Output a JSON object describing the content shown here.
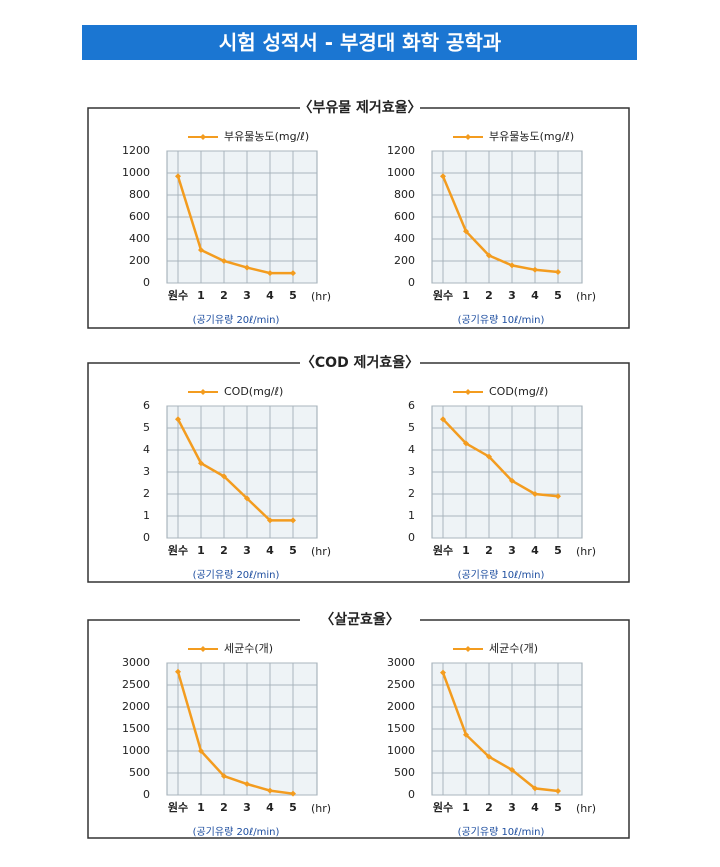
{
  "header": {
    "title": "시험 성적서 - 부경대 화학 공학과"
  },
  "sections": [
    {
      "title": "〈부유물 제거효율〉"
    },
    {
      "title": "〈COD 제거효율〉"
    },
    {
      "title": "〈살균효율〉"
    }
  ],
  "chart_data": [
    {
      "type": "line",
      "categories": [
        "원수",
        "1",
        "2",
        "3",
        "4",
        "5"
      ],
      "x_label": "(hr)",
      "caption": "(공기유량 20ℓ/min)",
      "series": [
        {
          "name": "부유물농도(mg/ℓ)",
          "color": "#f39c1f",
          "values": [
            970,
            300,
            200,
            140,
            90,
            90
          ]
        }
      ],
      "ylim": [
        0,
        1200
      ],
      "yticks": [
        0,
        200,
        400,
        600,
        800,
        1000,
        1200
      ],
      "grid": true
    },
    {
      "type": "line",
      "categories": [
        "원수",
        "1",
        "2",
        "3",
        "4",
        "5"
      ],
      "x_label": "(hr)",
      "caption": "(공기유량 10ℓ/min)",
      "series": [
        {
          "name": "부유물농도(mg/ℓ)",
          "color": "#f39c1f",
          "values": [
            970,
            470,
            250,
            160,
            120,
            100
          ]
        }
      ],
      "ylim": [
        0,
        1200
      ],
      "yticks": [
        0,
        200,
        400,
        600,
        800,
        1000,
        1200
      ],
      "grid": true
    },
    {
      "type": "line",
      "categories": [
        "원수",
        "1",
        "2",
        "3",
        "4",
        "5"
      ],
      "x_label": "(hr)",
      "caption": "(공기유량 20ℓ/min)",
      "series": [
        {
          "name": "COD(mg/ℓ)",
          "color": "#f39c1f",
          "values": [
            5.4,
            3.4,
            2.8,
            1.8,
            0.8,
            0.8
          ]
        }
      ],
      "ylim": [
        0,
        6
      ],
      "yticks": [
        0,
        1,
        2,
        3,
        4,
        5,
        6
      ],
      "grid": true
    },
    {
      "type": "line",
      "categories": [
        "원수",
        "1",
        "2",
        "3",
        "4",
        "5"
      ],
      "x_label": "(hr)",
      "caption": "(공기유량 10ℓ/min)",
      "series": [
        {
          "name": "COD(mg/ℓ)",
          "color": "#f39c1f",
          "values": [
            5.4,
            4.3,
            3.7,
            2.6,
            2.0,
            1.9
          ]
        }
      ],
      "ylim": [
        0,
        6
      ],
      "yticks": [
        0,
        1,
        2,
        3,
        4,
        5,
        6
      ],
      "grid": true
    },
    {
      "type": "line",
      "categories": [
        "원수",
        "1",
        "2",
        "3",
        "4",
        "5"
      ],
      "x_label": "(hr)",
      "caption": "(공기유량 20ℓ/min)",
      "series": [
        {
          "name": "세균수(개)",
          "color": "#f39c1f",
          "values": [
            2800,
            1000,
            430,
            250,
            100,
            30
          ]
        }
      ],
      "ylim": [
        0,
        3000
      ],
      "yticks": [
        0,
        500,
        1000,
        1500,
        2000,
        2500,
        3000
      ],
      "grid": true
    },
    {
      "type": "line",
      "categories": [
        "원수",
        "1",
        "2",
        "3",
        "4",
        "5"
      ],
      "x_label": "(hr)",
      "caption": "(공기유량 10ℓ/min)",
      "series": [
        {
          "name": "세균수(개)",
          "color": "#f39c1f",
          "values": [
            2780,
            1370,
            870,
            570,
            150,
            90
          ]
        }
      ],
      "ylim": [
        0,
        3000
      ],
      "yticks": [
        0,
        500,
        1000,
        1500,
        2000,
        2500,
        3000
      ],
      "grid": true
    }
  ]
}
